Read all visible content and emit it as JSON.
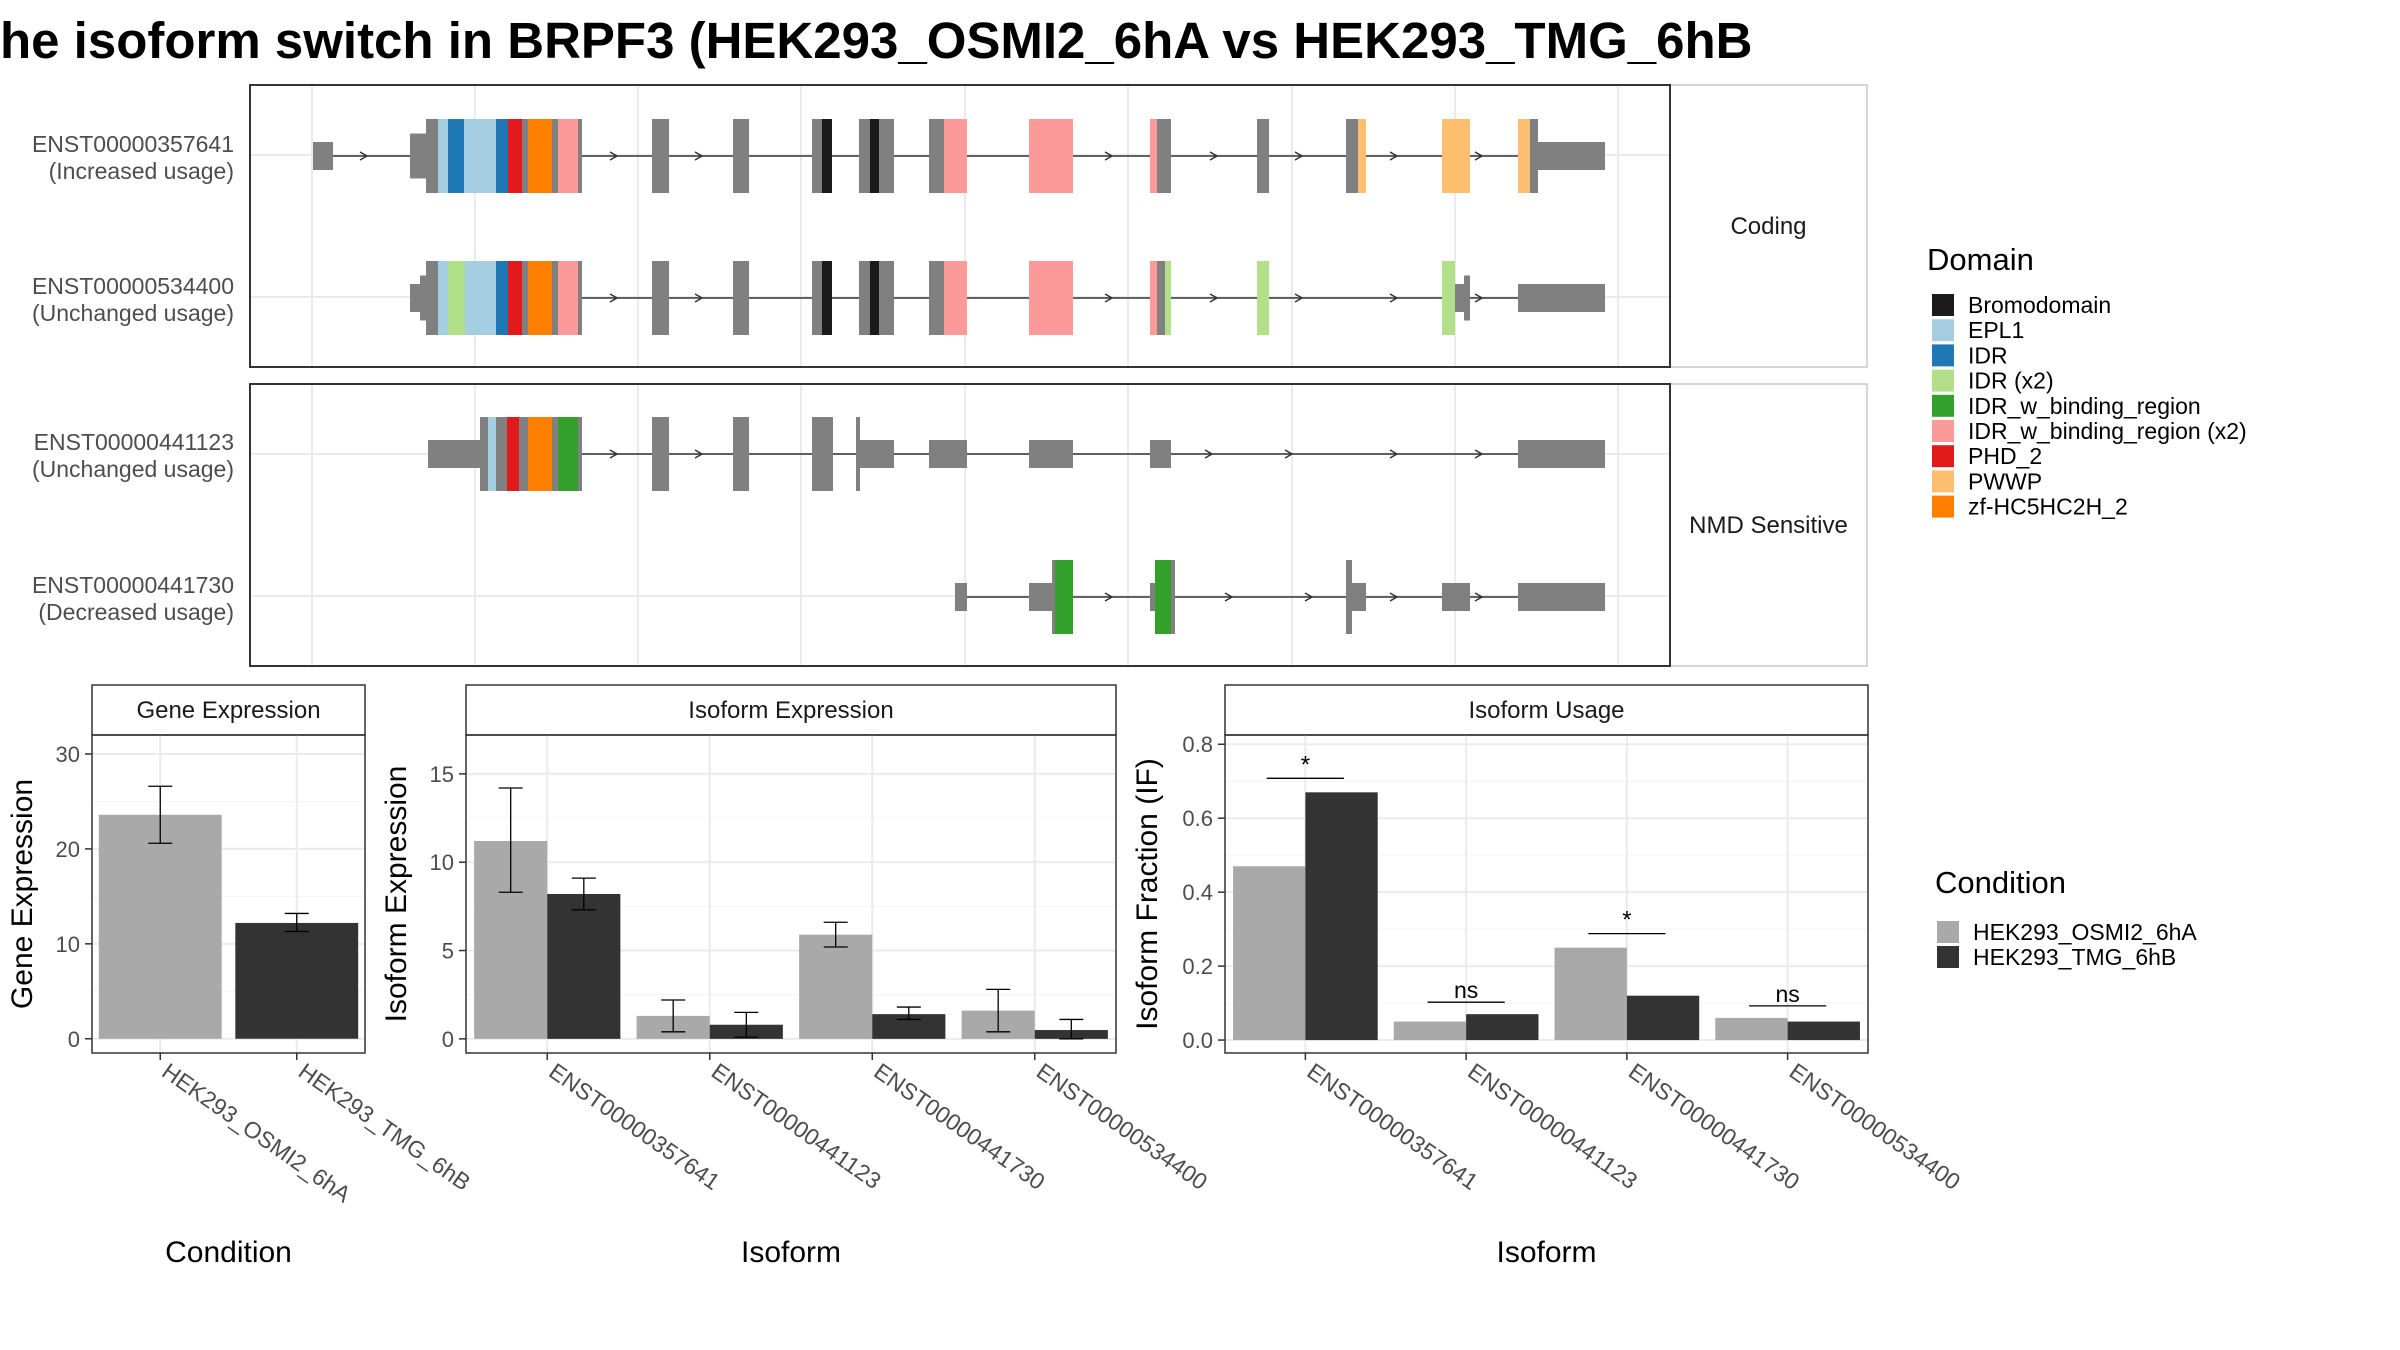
{
  "title": "he isoform switch in BRPF3 (HEK293_OSMI2_6hA vs HEK293_TMG_6hB",
  "colors": {
    "Bromodomain": "#1a1a1a",
    "EPL1": "#a6cee3",
    "IDR": "#1f78b4",
    "IDR (x2)": "#b2df8a",
    "IDR_w_binding_region": "#33a02c",
    "IDR_w_binding_region (x2)": "#fb9a99",
    "PHD_2": "#e31a1c",
    "PWWP": "#fdbf6f",
    "zf-HC5HC2H_2": "#ff7f00",
    "exon": "#808080",
    "condA": "#a9a9a9",
    "condB": "#333333"
  },
  "structure": {
    "facets": [
      "Coding",
      "NMD Sensitive"
    ],
    "transcripts": [
      {
        "id": "ENST00000357641",
        "usage": "(Increased usage)",
        "facet": "Coding"
      },
      {
        "id": "ENST00000534400",
        "usage": "(Unchanged usage)",
        "facet": "Coding"
      },
      {
        "id": "ENST00000441123",
        "usage": "(Unchanged usage)",
        "facet": "NMD Sensitive"
      },
      {
        "id": "ENST00000441730",
        "usage": "(Decreased usage)",
        "facet": "NMD Sensitive"
      }
    ]
  },
  "legend_domain": {
    "title": "Domain",
    "items": [
      "Bromodomain",
      "EPL1",
      "IDR",
      "IDR (x2)",
      "IDR_w_binding_region",
      "IDR_w_binding_region (x2)",
      "PHD_2",
      "PWWP",
      "zf-HC5HC2H_2"
    ]
  },
  "legend_condition": {
    "title": "Condition",
    "items": [
      "HEK293_OSMI2_6hA",
      "HEK293_TMG_6hB"
    ]
  },
  "chart_data": [
    {
      "type": "bar",
      "title": "Gene Expression",
      "xlabel": "Condition",
      "ylabel": "Gene Expression",
      "categories": [
        "HEK293_OSMI2_6hA",
        "HEK293_TMG_6hB"
      ],
      "values": [
        23.6,
        12.2
      ],
      "errors": [
        [
          20.6,
          26.6
        ],
        [
          11.3,
          13.2
        ]
      ],
      "ylim": [
        -1.5,
        32
      ],
      "yticks": [
        0,
        10,
        20,
        30
      ],
      "grid": true
    },
    {
      "type": "bar",
      "title": "Isoform Expression",
      "xlabel": "Isoform",
      "ylabel": "Isoform Expression",
      "categories": [
        "ENST00000357641",
        "ENST00000441123",
        "ENST00000441730",
        "ENST00000534400"
      ],
      "series": [
        {
          "name": "HEK293_OSMI2_6hA",
          "values": [
            11.2,
            1.3,
            5.9,
            1.6
          ],
          "errors": [
            [
              8.3,
              14.2
            ],
            [
              0.4,
              2.2
            ],
            [
              5.2,
              6.6
            ],
            [
              0.4,
              2.8
            ]
          ]
        },
        {
          "name": "HEK293_TMG_6hB",
          "values": [
            8.2,
            0.8,
            1.4,
            0.5
          ],
          "errors": [
            [
              7.3,
              9.1
            ],
            [
              0.1,
              1.5
            ],
            [
              1.1,
              1.8
            ],
            [
              0.0,
              1.1
            ]
          ]
        }
      ],
      "ylim": [
        -0.8,
        17.2
      ],
      "yticks": [
        0,
        5,
        10,
        15
      ],
      "grid": true
    },
    {
      "type": "bar",
      "title": "Isoform Usage",
      "xlabel": "Isoform",
      "ylabel": "Isoform Fraction (IF)",
      "categories": [
        "ENST00000357641",
        "ENST00000441123",
        "ENST00000441730",
        "ENST00000534400"
      ],
      "series": [
        {
          "name": "HEK293_OSMI2_6hA",
          "values": [
            0.47,
            0.05,
            0.25,
            0.06
          ]
        },
        {
          "name": "HEK293_TMG_6hB",
          "values": [
            0.67,
            0.07,
            0.12,
            0.05
          ]
        }
      ],
      "significance": [
        "*",
        "ns",
        "*",
        "ns"
      ],
      "ylim": [
        -0.035,
        0.825
      ],
      "yticks": [
        0.0,
        0.2,
        0.4,
        0.6,
        0.8
      ],
      "ytick_labels": [
        "0.0",
        "0.2",
        "0.4",
        "0.6",
        "0.8"
      ],
      "grid": true
    }
  ]
}
